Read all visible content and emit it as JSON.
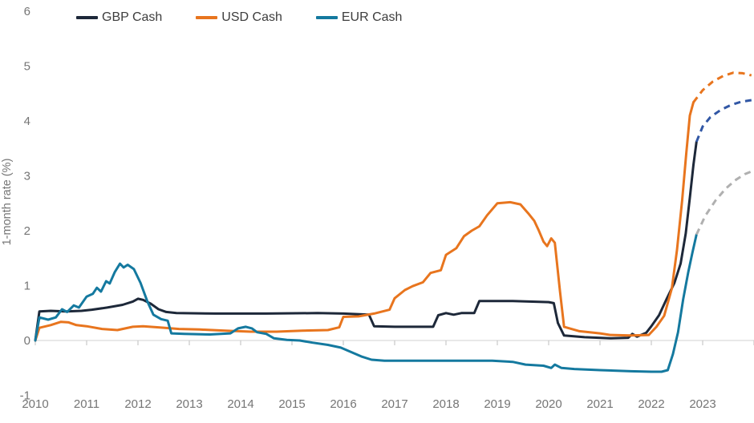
{
  "chart_data": {
    "type": "line",
    "title": "",
    "xlabel": "",
    "ylabel": "1-month rate (%)",
    "ylim": [
      -1,
      6
    ],
    "xlim": [
      2010,
      2024
    ],
    "y_ticks": [
      -1,
      0,
      1,
      2,
      3,
      4,
      5,
      6
    ],
    "x_ticks": [
      2010,
      2011,
      2012,
      2013,
      2014,
      2015,
      2016,
      2017,
      2018,
      2019,
      2020,
      2021,
      2022,
      2023
    ],
    "grid": "zero-axis-only",
    "legend_position": "top-left",
    "colors": {
      "axis_line": "#d9d9d9",
      "tick_mark": "#c9c9c9",
      "tick_text": "#757575",
      "legend_text": "#3d3d3d",
      "gbp": "#1d2839",
      "usd": "#e8751e",
      "eur": "#14799f",
      "gbp_forward": "#3157a5",
      "eur_forward": "#b0b0b0"
    },
    "series": [
      {
        "name": "GBP Cash",
        "color": "#1d2839",
        "style": "solid",
        "points": [
          [
            2010.0,
            0.0
          ],
          [
            2010.08,
            0.53
          ],
          [
            2010.3,
            0.54
          ],
          [
            2010.6,
            0.53
          ],
          [
            2010.9,
            0.54
          ],
          [
            2011.1,
            0.56
          ],
          [
            2011.4,
            0.6
          ],
          [
            2011.7,
            0.65
          ],
          [
            2011.9,
            0.71
          ],
          [
            2012.0,
            0.76
          ],
          [
            2012.1,
            0.74
          ],
          [
            2012.25,
            0.67
          ],
          [
            2012.4,
            0.57
          ],
          [
            2012.55,
            0.52
          ],
          [
            2012.75,
            0.5
          ],
          [
            2013.5,
            0.49
          ],
          [
            2014.5,
            0.49
          ],
          [
            2015.5,
            0.5
          ],
          [
            2016.0,
            0.49
          ],
          [
            2016.5,
            0.47
          ],
          [
            2016.6,
            0.26
          ],
          [
            2017.0,
            0.25
          ],
          [
            2017.75,
            0.25
          ],
          [
            2017.85,
            0.46
          ],
          [
            2018.0,
            0.5
          ],
          [
            2018.15,
            0.47
          ],
          [
            2018.3,
            0.5
          ],
          [
            2018.55,
            0.5
          ],
          [
            2018.65,
            0.72
          ],
          [
            2019.3,
            0.72
          ],
          [
            2020.0,
            0.7
          ],
          [
            2020.1,
            0.68
          ],
          [
            2020.18,
            0.32
          ],
          [
            2020.3,
            0.09
          ],
          [
            2020.7,
            0.06
          ],
          [
            2021.2,
            0.04
          ],
          [
            2021.55,
            0.05
          ],
          [
            2021.63,
            0.12
          ],
          [
            2021.72,
            0.07
          ],
          [
            2021.9,
            0.14
          ],
          [
            2022.0,
            0.26
          ],
          [
            2022.15,
            0.46
          ],
          [
            2022.3,
            0.76
          ],
          [
            2022.45,
            1.05
          ],
          [
            2022.57,
            1.4
          ],
          [
            2022.67,
            1.95
          ],
          [
            2022.75,
            2.6
          ],
          [
            2022.82,
            3.2
          ],
          [
            2022.88,
            3.62
          ]
        ]
      },
      {
        "name": "USD Cash",
        "color": "#e8751e",
        "style": "solid",
        "points": [
          [
            2010.0,
            0.0
          ],
          [
            2010.08,
            0.23
          ],
          [
            2010.3,
            0.28
          ],
          [
            2010.5,
            0.34
          ],
          [
            2010.65,
            0.33
          ],
          [
            2010.8,
            0.28
          ],
          [
            2011.0,
            0.26
          ],
          [
            2011.3,
            0.21
          ],
          [
            2011.6,
            0.19
          ],
          [
            2011.9,
            0.25
          ],
          [
            2012.1,
            0.26
          ],
          [
            2012.4,
            0.24
          ],
          [
            2012.8,
            0.21
          ],
          [
            2013.2,
            0.2
          ],
          [
            2013.7,
            0.18
          ],
          [
            2014.2,
            0.16
          ],
          [
            2014.7,
            0.16
          ],
          [
            2015.2,
            0.18
          ],
          [
            2015.7,
            0.19
          ],
          [
            2015.92,
            0.24
          ],
          [
            2016.0,
            0.43
          ],
          [
            2016.3,
            0.44
          ],
          [
            2016.6,
            0.49
          ],
          [
            2016.9,
            0.56
          ],
          [
            2017.0,
            0.77
          ],
          [
            2017.2,
            0.92
          ],
          [
            2017.35,
            0.99
          ],
          [
            2017.55,
            1.06
          ],
          [
            2017.7,
            1.23
          ],
          [
            2017.9,
            1.28
          ],
          [
            2018.0,
            1.56
          ],
          [
            2018.2,
            1.68
          ],
          [
            2018.35,
            1.9
          ],
          [
            2018.5,
            2.0
          ],
          [
            2018.65,
            2.08
          ],
          [
            2018.8,
            2.28
          ],
          [
            2019.0,
            2.5
          ],
          [
            2019.25,
            2.52
          ],
          [
            2019.45,
            2.48
          ],
          [
            2019.6,
            2.32
          ],
          [
            2019.72,
            2.18
          ],
          [
            2019.8,
            2.02
          ],
          [
            2019.9,
            1.8
          ],
          [
            2019.97,
            1.72
          ],
          [
            2020.05,
            1.86
          ],
          [
            2020.12,
            1.78
          ],
          [
            2020.22,
            0.9
          ],
          [
            2020.3,
            0.25
          ],
          [
            2020.6,
            0.17
          ],
          [
            2021.0,
            0.13
          ],
          [
            2021.2,
            0.1
          ],
          [
            2021.6,
            0.09
          ],
          [
            2021.95,
            0.1
          ],
          [
            2022.1,
            0.25
          ],
          [
            2022.25,
            0.45
          ],
          [
            2022.4,
            0.95
          ],
          [
            2022.5,
            1.65
          ],
          [
            2022.6,
            2.55
          ],
          [
            2022.68,
            3.4
          ],
          [
            2022.75,
            4.1
          ],
          [
            2022.82,
            4.34
          ]
        ]
      },
      {
        "name": "EUR Cash",
        "color": "#14799f",
        "style": "solid",
        "points": [
          [
            2010.0,
            0.0
          ],
          [
            2010.08,
            0.42
          ],
          [
            2010.25,
            0.38
          ],
          [
            2010.4,
            0.42
          ],
          [
            2010.52,
            0.57
          ],
          [
            2010.62,
            0.52
          ],
          [
            2010.75,
            0.64
          ],
          [
            2010.85,
            0.6
          ],
          [
            2011.0,
            0.8
          ],
          [
            2011.12,
            0.85
          ],
          [
            2011.2,
            0.96
          ],
          [
            2011.28,
            0.89
          ],
          [
            2011.38,
            1.08
          ],
          [
            2011.45,
            1.04
          ],
          [
            2011.55,
            1.25
          ],
          [
            2011.65,
            1.4
          ],
          [
            2011.72,
            1.33
          ],
          [
            2011.8,
            1.38
          ],
          [
            2011.92,
            1.3
          ],
          [
            2012.05,
            1.05
          ],
          [
            2012.18,
            0.72
          ],
          [
            2012.3,
            0.47
          ],
          [
            2012.45,
            0.39
          ],
          [
            2012.58,
            0.36
          ],
          [
            2012.65,
            0.13
          ],
          [
            2012.9,
            0.12
          ],
          [
            2013.4,
            0.11
          ],
          [
            2013.8,
            0.13
          ],
          [
            2013.95,
            0.22
          ],
          [
            2014.1,
            0.25
          ],
          [
            2014.22,
            0.22
          ],
          [
            2014.32,
            0.15
          ],
          [
            2014.5,
            0.12
          ],
          [
            2014.65,
            0.04
          ],
          [
            2014.9,
            0.01
          ],
          [
            2015.15,
            0.0
          ],
          [
            2015.4,
            -0.04
          ],
          [
            2015.7,
            -0.08
          ],
          [
            2015.95,
            -0.13
          ],
          [
            2016.15,
            -0.21
          ],
          [
            2016.35,
            -0.29
          ],
          [
            2016.55,
            -0.35
          ],
          [
            2016.8,
            -0.37
          ],
          [
            2017.5,
            -0.37
          ],
          [
            2018.2,
            -0.37
          ],
          [
            2018.9,
            -0.37
          ],
          [
            2019.3,
            -0.39
          ],
          [
            2019.55,
            -0.44
          ],
          [
            2019.9,
            -0.46
          ],
          [
            2020.05,
            -0.5
          ],
          [
            2020.12,
            -0.44
          ],
          [
            2020.25,
            -0.5
          ],
          [
            2020.5,
            -0.52
          ],
          [
            2021.0,
            -0.54
          ],
          [
            2021.6,
            -0.56
          ],
          [
            2022.0,
            -0.57
          ],
          [
            2022.2,
            -0.57
          ],
          [
            2022.32,
            -0.54
          ],
          [
            2022.42,
            -0.25
          ],
          [
            2022.52,
            0.15
          ],
          [
            2022.62,
            0.75
          ],
          [
            2022.72,
            1.25
          ],
          [
            2022.8,
            1.6
          ],
          [
            2022.88,
            1.93
          ]
        ]
      },
      {
        "name": "GBP Cash forward",
        "color": "#3157a5",
        "style": "dashed",
        "points": [
          [
            2022.88,
            3.62
          ],
          [
            2023.0,
            3.9
          ],
          [
            2023.15,
            4.07
          ],
          [
            2023.35,
            4.2
          ],
          [
            2023.55,
            4.29
          ],
          [
            2023.75,
            4.35
          ],
          [
            2023.95,
            4.38
          ]
        ]
      },
      {
        "name": "USD Cash forward",
        "color": "#e8751e",
        "style": "dashed",
        "points": [
          [
            2022.82,
            4.34
          ],
          [
            2023.0,
            4.56
          ],
          [
            2023.2,
            4.72
          ],
          [
            2023.4,
            4.82
          ],
          [
            2023.6,
            4.88
          ],
          [
            2023.78,
            4.87
          ],
          [
            2023.95,
            4.83
          ]
        ]
      },
      {
        "name": "EUR Cash forward",
        "color": "#b0b0b0",
        "style": "dashed",
        "points": [
          [
            2022.88,
            1.93
          ],
          [
            2023.05,
            2.27
          ],
          [
            2023.25,
            2.55
          ],
          [
            2023.45,
            2.77
          ],
          [
            2023.65,
            2.93
          ],
          [
            2023.82,
            3.03
          ],
          [
            2023.95,
            3.08
          ]
        ]
      }
    ],
    "legend": [
      {
        "label": "GBP Cash",
        "color": "#1d2839"
      },
      {
        "label": "USD Cash",
        "color": "#e8751e"
      },
      {
        "label": "EUR Cash",
        "color": "#14799f"
      }
    ]
  }
}
